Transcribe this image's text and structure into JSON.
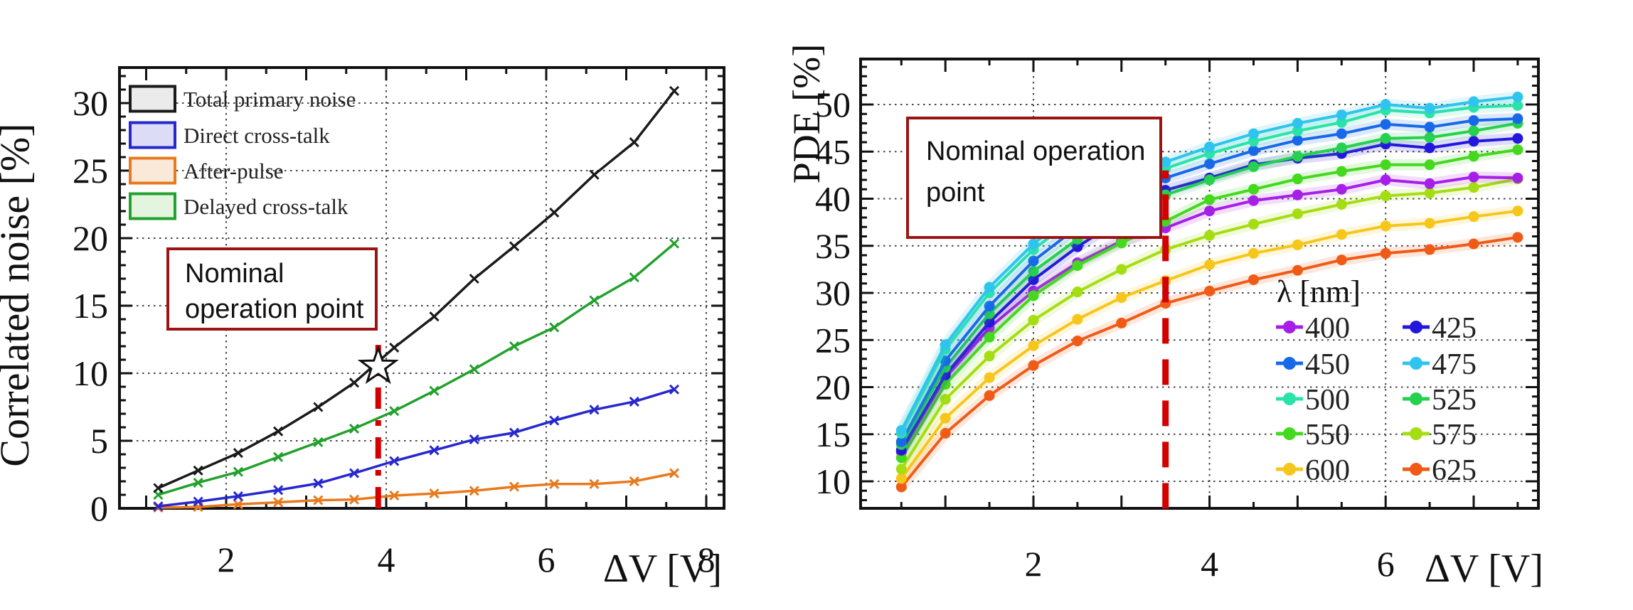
{
  "page": {
    "background": "#ffffff"
  },
  "annotations": {
    "left": {
      "line1": "Nominal",
      "line2": "operation point"
    },
    "right": {
      "line1": "Nominal operation",
      "line2": "point"
    }
  },
  "chart_data": [
    {
      "type": "line",
      "xlabel": "ΔV [V]",
      "ylabel": "Correlated noise [%]",
      "xlim": [
        0.67,
        8.22
      ],
      "ylim": [
        0,
        32.6
      ],
      "x_tick_labels": [
        2,
        4,
        6,
        8
      ],
      "y_tick_labels": [
        0,
        5,
        10,
        15,
        20,
        25,
        30
      ],
      "grid_x": [
        2,
        4,
        6,
        8
      ],
      "grid_y": [
        5,
        10,
        15,
        20,
        25,
        30
      ],
      "grid": true,
      "legend_position": "top-left",
      "marker": "cross",
      "series": [
        {
          "name": "Total primary noise",
          "color": "#1a1a1a",
          "swatch_fill": "#ebebeb",
          "x": [
            1.15,
            1.65,
            2.15,
            2.65,
            3.15,
            3.6,
            4.1,
            4.6,
            5.1,
            5.6,
            6.1,
            6.6,
            7.1,
            7.6
          ],
          "y": [
            1.5,
            2.8,
            4.1,
            5.7,
            7.5,
            9.3,
            11.9,
            14.2,
            17.0,
            19.4,
            21.9,
            24.7,
            27.1,
            30.9
          ]
        },
        {
          "name": "Direct cross-talk",
          "color": "#2727cf",
          "swatch_fill": "#dcdcf7",
          "x": [
            1.15,
            1.65,
            2.15,
            2.65,
            3.15,
            3.6,
            4.1,
            4.6,
            5.1,
            5.6,
            6.1,
            6.6,
            7.1,
            7.6
          ],
          "y": [
            0.15,
            0.5,
            0.9,
            1.35,
            1.85,
            2.6,
            3.5,
            4.3,
            5.1,
            5.6,
            6.5,
            7.3,
            7.9,
            8.8
          ]
        },
        {
          "name": "After-pulse",
          "color": "#e8791c",
          "swatch_fill": "#fae9d9",
          "x": [
            1.15,
            1.65,
            2.15,
            2.65,
            3.15,
            3.6,
            4.1,
            4.6,
            5.1,
            5.6,
            6.1,
            6.6,
            7.1,
            7.6
          ],
          "y": [
            0.05,
            0.1,
            0.3,
            0.45,
            0.6,
            0.65,
            0.95,
            1.1,
            1.3,
            1.6,
            1.8,
            1.8,
            2.0,
            2.6
          ]
        },
        {
          "name": "Delayed cross-talk",
          "color": "#22a12c",
          "swatch_fill": "#e3f4df",
          "x": [
            1.15,
            1.65,
            2.15,
            2.65,
            3.15,
            3.6,
            4.1,
            4.6,
            5.1,
            5.6,
            6.1,
            6.6,
            7.1,
            7.6
          ],
          "y": [
            1.0,
            1.9,
            2.7,
            3.8,
            4.9,
            5.9,
            7.2,
            8.7,
            10.3,
            12.0,
            13.4,
            15.4,
            17.1,
            19.6
          ]
        }
      ],
      "nominal_line": {
        "x": 3.9,
        "y_from": 0,
        "y_to": 12.1,
        "color": "#d40000",
        "style": "dash-dot"
      },
      "star_marker": {
        "x": 3.9,
        "y": 10.5
      }
    },
    {
      "type": "line",
      "xlabel": "ΔV [V]",
      "ylabel": "PDE [%]",
      "legend_title": "λ [nm]",
      "xlim": [
        0.04,
        7.73
      ],
      "ylim": [
        7.1,
        54.8
      ],
      "x_tick_labels": [
        2,
        4,
        6
      ],
      "y_tick_labels": [
        10,
        15,
        20,
        25,
        30,
        35,
        40,
        45,
        50
      ],
      "grid_x": [
        2,
        4,
        6
      ],
      "grid_y": [
        10,
        15,
        20,
        25,
        30,
        35,
        40,
        45,
        50
      ],
      "grid": true,
      "legend_position": "bottom-right",
      "marker": "circle",
      "error_band": true,
      "x_shared": [
        0.5,
        1.0,
        1.5,
        2.0,
        2.5,
        3.0,
        3.5,
        4.0,
        4.5,
        5.0,
        5.5,
        6.0,
        6.5,
        7.0,
        7.5
      ],
      "series": [
        {
          "name": "400",
          "color": "#a61fe8",
          "x": [
            0.5,
            1.0,
            1.5,
            2.0,
            2.5,
            3.0,
            3.5,
            4.0,
            4.5,
            5.0,
            5.5,
            6.0,
            6.5,
            7.0,
            7.5
          ],
          "y": [
            13.1,
            21.0,
            26.3,
            30.2,
            33.2,
            35.5,
            36.9,
            38.7,
            39.8,
            40.4,
            41.0,
            42.0,
            41.6,
            42.3,
            42.2
          ]
        },
        {
          "name": "425",
          "color": "#2417dc",
          "x": [
            0.5,
            1.0,
            1.5,
            2.0,
            2.5,
            3.0,
            3.5,
            4.0,
            4.5,
            5.0,
            5.5,
            6.0,
            6.5,
            7.0,
            7.5
          ],
          "y": [
            13.3,
            21.3,
            26.9,
            31.4,
            34.9,
            37.9,
            40.9,
            42.2,
            43.6,
            44.3,
            44.8,
            45.8,
            45.4,
            46.1,
            46.4
          ]
        },
        {
          "name": "450",
          "color": "#1769e8",
          "x": [
            0.5,
            1.0,
            1.5,
            2.0,
            2.5,
            3.0,
            3.5,
            4.0,
            4.5,
            5.0,
            5.5,
            6.0,
            6.5,
            7.0,
            7.5
          ],
          "y": [
            14.2,
            22.8,
            28.6,
            33.4,
            37.0,
            40.0,
            42.2,
            43.7,
            45.1,
            46.2,
            46.9,
            47.9,
            47.6,
            48.3,
            48.5
          ]
        },
        {
          "name": "475",
          "color": "#2fc4ee",
          "x": [
            0.5,
            1.0,
            1.5,
            2.0,
            2.5,
            3.0,
            3.5,
            4.0,
            4.5,
            5.0,
            5.5,
            6.0,
            6.5,
            7.0,
            7.5
          ],
          "y": [
            15.4,
            24.5,
            30.6,
            35.2,
            38.9,
            41.7,
            43.9,
            45.5,
            46.9,
            48.0,
            48.9,
            50.0,
            49.6,
            50.3,
            50.8
          ]
        },
        {
          "name": "500",
          "color": "#2be3a8",
          "x": [
            0.5,
            1.0,
            1.5,
            2.0,
            2.5,
            3.0,
            3.5,
            4.0,
            4.5,
            5.0,
            5.5,
            6.0,
            6.5,
            7.0,
            7.5
          ],
          "y": [
            15.1,
            24.0,
            30.0,
            34.6,
            38.2,
            41.0,
            43.2,
            44.8,
            46.1,
            47.2,
            48.1,
            49.4,
            49.1,
            49.7,
            49.9
          ]
        },
        {
          "name": "525",
          "color": "#25d14f",
          "x": [
            0.5,
            1.0,
            1.5,
            2.0,
            2.5,
            3.0,
            3.5,
            4.0,
            4.5,
            5.0,
            5.5,
            6.0,
            6.5,
            7.0,
            7.5
          ],
          "y": [
            13.9,
            22.1,
            27.8,
            32.3,
            35.7,
            38.4,
            40.4,
            42.0,
            43.4,
            44.5,
            45.4,
            46.4,
            46.5,
            47.2,
            48.0
          ]
        },
        {
          "name": "550",
          "color": "#44d81f",
          "x": [
            0.5,
            1.0,
            1.5,
            2.0,
            2.5,
            3.0,
            3.5,
            4.0,
            4.5,
            5.0,
            5.5,
            6.0,
            6.5,
            7.0,
            7.5
          ],
          "y": [
            12.5,
            20.3,
            25.3,
            29.7,
            32.9,
            35.3,
            37.6,
            39.9,
            41.0,
            42.1,
            42.9,
            43.6,
            43.6,
            44.5,
            45.2
          ]
        },
        {
          "name": "575",
          "color": "#a5dd13",
          "x": [
            0.5,
            1.0,
            1.5,
            2.0,
            2.5,
            3.0,
            3.5,
            4.0,
            4.5,
            5.0,
            5.5,
            6.0,
            6.5,
            7.0,
            7.5
          ],
          "y": [
            11.3,
            18.7,
            23.3,
            27.1,
            30.1,
            32.5,
            34.6,
            36.1,
            37.3,
            38.4,
            39.4,
            40.3,
            40.6,
            41.2,
            42.1
          ]
        },
        {
          "name": "600",
          "color": "#f7c61b",
          "x": [
            0.5,
            1.0,
            1.5,
            2.0,
            2.5,
            3.0,
            3.5,
            4.0,
            4.5,
            5.0,
            5.5,
            6.0,
            6.5,
            7.0,
            7.5
          ],
          "y": [
            10.3,
            16.7,
            21.0,
            24.4,
            27.2,
            29.5,
            31.3,
            33.0,
            34.2,
            35.1,
            36.2,
            37.1,
            37.4,
            38.1,
            38.7
          ]
        },
        {
          "name": "625",
          "color": "#ef5b17",
          "x": [
            0.5,
            1.0,
            1.5,
            2.0,
            2.5,
            3.0,
            3.5,
            4.0,
            4.5,
            5.0,
            5.5,
            6.0,
            6.5,
            7.0,
            7.5
          ],
          "y": [
            9.4,
            15.1,
            19.1,
            22.3,
            24.9,
            26.8,
            28.9,
            30.2,
            31.4,
            32.4,
            33.5,
            34.2,
            34.6,
            35.2,
            35.9
          ]
        }
      ],
      "nominal_line": {
        "x": 3.5,
        "y_from": 7.1,
        "y_to": 43,
        "color": "#d40000",
        "style": "dash"
      }
    }
  ]
}
